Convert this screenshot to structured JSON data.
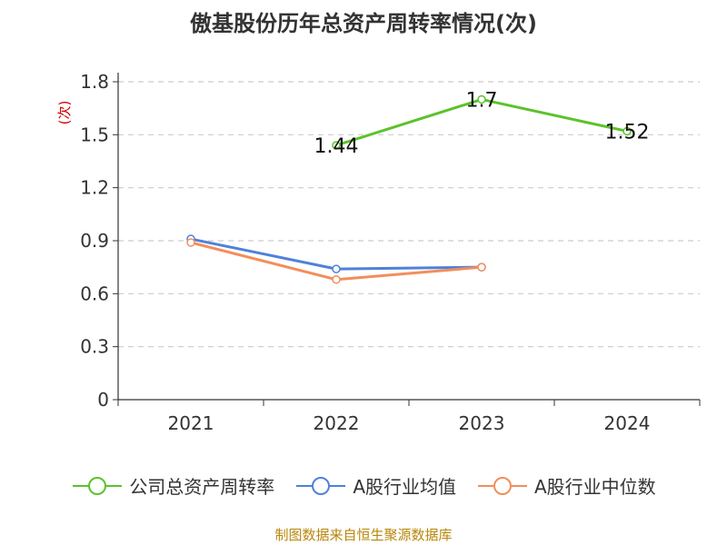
{
  "title": "傲基股份历年总资产周转率情况(次)",
  "source": "制图数据来自恒生聚源数据库",
  "chart_data": {
    "type": "line",
    "title": "傲基股份历年总资产周转率情况(次)",
    "ylabel": "(次)",
    "xlabel": "",
    "categories": [
      "2021",
      "2022",
      "2023",
      "2024"
    ],
    "ylim": [
      0,
      1.8
    ],
    "yticks": [
      "0",
      "0.3",
      "0.6",
      "0.9",
      "1.2",
      "1.5",
      "1.8"
    ],
    "grid": true,
    "legend_position": "bottom",
    "series": [
      {
        "name": "公司总资产周转率",
        "color": "#5cc22b",
        "values": [
          null,
          1.44,
          1.7,
          1.52
        ],
        "labels": [
          null,
          "1.44",
          "1.7",
          "1.52"
        ]
      },
      {
        "name": "A股行业均值",
        "color": "#4f81d9",
        "values": [
          0.91,
          0.74,
          0.75,
          null
        ],
        "labels": [
          null,
          null,
          null,
          null
        ]
      },
      {
        "name": "A股行业中位数",
        "color": "#f28e5b",
        "values": [
          0.89,
          0.68,
          0.75,
          null
        ],
        "labels": [
          null,
          null,
          null,
          null
        ]
      }
    ]
  }
}
